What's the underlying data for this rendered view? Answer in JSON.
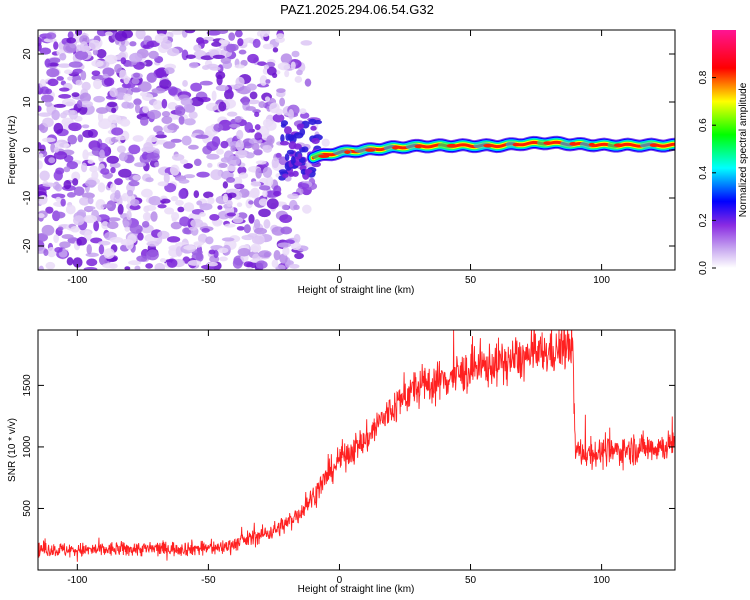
{
  "title": "PAZ1.2025.294.06.54.G32",
  "chart_data": [
    {
      "type": "heatmap",
      "xlabel": "Height of straight line (km)",
      "ylabel": "Frequency (Hz)",
      "xlim": [
        -115,
        128
      ],
      "ylim": [
        -25,
        25
      ],
      "xticks": [
        -100,
        -50,
        0,
        50,
        100
      ],
      "yticks": [
        -20,
        -10,
        0,
        10,
        20
      ],
      "colorbar": {
        "label": "Normalized spectral amplitude",
        "range": [
          0,
          1
        ],
        "ticks": [
          0.0,
          0.2,
          0.4,
          0.6,
          0.8
        ],
        "colors": [
          "#ffffff",
          "#8a2be2",
          "#0000ff",
          "#00ffff",
          "#00ff00",
          "#ffff00",
          "#ff0000",
          "#ff1493"
        ]
      },
      "noise_region_x": [
        -115,
        -10
      ],
      "track": {
        "x": [
          -10,
          0,
          10,
          20,
          30,
          40,
          50,
          60,
          70,
          80,
          90,
          100,
          110,
          128
        ],
        "freq": [
          -1.5,
          -0.5,
          0.0,
          0.5,
          0.8,
          0.9,
          0.9,
          0.9,
          1.3,
          1.5,
          1.2,
          1.0,
          1.0,
          1.0
        ]
      }
    },
    {
      "type": "line",
      "xlabel": "Height of straight line (km)",
      "ylabel": "SNR (10 * v/v)",
      "xlim": [
        -115,
        128
      ],
      "ylim": [
        0,
        1950
      ],
      "xticks": [
        -100,
        -50,
        0,
        50,
        100
      ],
      "yticks": [
        500,
        1000,
        1500
      ],
      "series": [
        {
          "name": "SNR",
          "color": "#ff2020",
          "x": [
            -115,
            -100,
            -80,
            -60,
            -45,
            -35,
            -25,
            -20,
            -15,
            -10,
            -5,
            0,
            5,
            10,
            15,
            20,
            25,
            30,
            40,
            50,
            60,
            70,
            80,
            85,
            89,
            90,
            95,
            100,
            110,
            120,
            128
          ],
          "y": [
            170,
            160,
            170,
            175,
            180,
            250,
            320,
            380,
            470,
            600,
            750,
            900,
            980,
            1050,
            1200,
            1300,
            1420,
            1480,
            1550,
            1620,
            1680,
            1720,
            1770,
            1800,
            1810,
            960,
            950,
            950,
            980,
            1000,
            1010
          ]
        }
      ]
    }
  ]
}
